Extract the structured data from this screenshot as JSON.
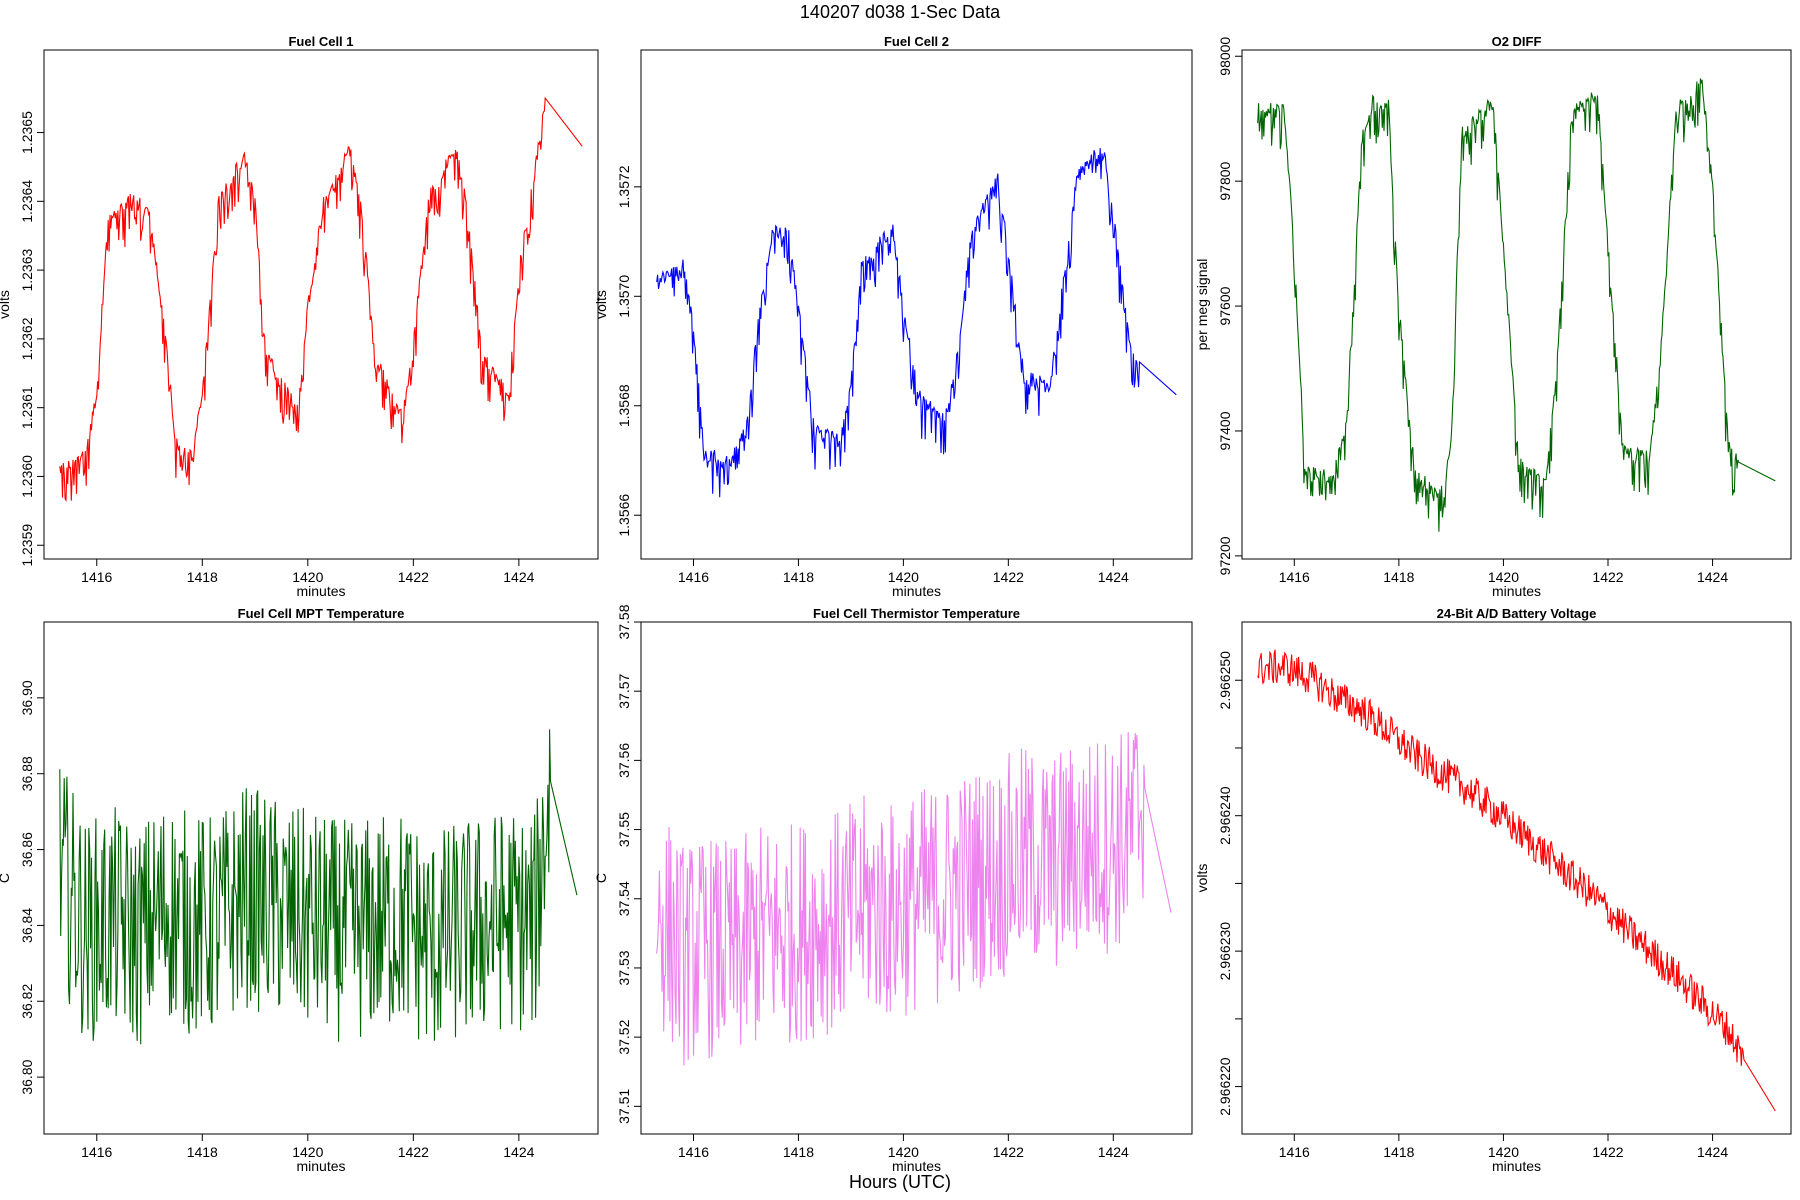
{
  "figure": {
    "title": "140207    d038    1-Sec Data",
    "xlabel": "Hours (UTC)"
  },
  "chart_data": [
    {
      "type": "line",
      "title": "Fuel Cell 1",
      "xlabel": "minutes",
      "ylabel": "volts",
      "color": "#ff0000",
      "xlim": [
        1415,
        1425.5
      ],
      "ylim": [
        1.23588,
        1.23662
      ],
      "xticks": [
        1416,
        1418,
        1420,
        1422,
        1424
      ],
      "yticks": [
        1.2359,
        1.236,
        1.2361,
        1.2362,
        1.2363,
        1.2364,
        1.2365
      ],
      "ytick_labels": [
        "1.2359",
        "1.2360",
        "1.2361",
        "1.2362",
        "1.2363",
        "1.2364",
        "1.2365"
      ],
      "x": [
        1415.3,
        1415.8,
        1416.0,
        1416.2,
        1416.7,
        1417.0,
        1417.3,
        1417.5,
        1417.8,
        1418.0,
        1418.3,
        1418.8,
        1419.0,
        1419.2,
        1419.8,
        1420.0,
        1420.3,
        1420.8,
        1421.0,
        1421.3,
        1421.8,
        1422.0,
        1422.3,
        1422.8,
        1423.0,
        1423.3,
        1423.8,
        1424.0,
        1424.3,
        1424.5,
        1425.2
      ],
      "y": [
        1.23601,
        1.23604,
        1.23612,
        1.23637,
        1.23641,
        1.23638,
        1.23621,
        1.23605,
        1.23603,
        1.23612,
        1.2364,
        1.23647,
        1.2364,
        1.23618,
        1.2361,
        1.23625,
        1.2364,
        1.23648,
        1.2364,
        1.23617,
        1.23609,
        1.2362,
        1.23641,
        1.23648,
        1.2364,
        1.23618,
        1.23612,
        1.2363,
        1.23645,
        1.23655,
        1.23648
      ]
    },
    {
      "type": "line",
      "title": "Fuel Cell 2",
      "xlabel": "minutes",
      "ylabel": "volts",
      "color": "#0000ff",
      "xlim": [
        1415,
        1425.5
      ],
      "ylim": [
        1.35652,
        1.35745
      ],
      "xticks": [
        1416,
        1418,
        1420,
        1422,
        1424
      ],
      "yticks": [
        1.3566,
        1.3568,
        1.357,
        1.3572
      ],
      "ytick_labels": [
        "1.3566",
        "1.3568",
        "1.3570",
        "1.3572"
      ],
      "x": [
        1415.3,
        1415.8,
        1416.0,
        1416.2,
        1416.7,
        1417.0,
        1417.3,
        1417.5,
        1417.8,
        1418.0,
        1418.3,
        1418.8,
        1419.0,
        1419.2,
        1419.8,
        1420.0,
        1420.3,
        1420.8,
        1421.0,
        1421.3,
        1421.8,
        1422.0,
        1422.3,
        1422.8,
        1423.0,
        1423.3,
        1423.8,
        1424.0,
        1424.3,
        1424.5,
        1425.2
      ],
      "y": [
        1.35703,
        1.35706,
        1.35695,
        1.35672,
        1.3567,
        1.35676,
        1.35701,
        1.35712,
        1.35713,
        1.35698,
        1.35676,
        1.35674,
        1.35684,
        1.35706,
        1.35713,
        1.35698,
        1.35682,
        1.35678,
        1.35688,
        1.35712,
        1.35722,
        1.35708,
        1.35686,
        1.35684,
        1.357,
        1.35722,
        1.35728,
        1.35715,
        1.35692,
        1.35688,
        1.35682
      ]
    },
    {
      "type": "line",
      "title": "O2 DIFF",
      "xlabel": "minutes",
      "ylabel": "per meg signal",
      "color": "#006400",
      "xlim": [
        1415,
        1425.5
      ],
      "ylim": [
        97195,
        98010
      ],
      "xticks": [
        1416,
        1418,
        1420,
        1422,
        1424
      ],
      "yticks": [
        97200,
        97400,
        97600,
        97800,
        98000
      ],
      "ytick_labels": [
        "97200",
        "97400",
        "97600",
        "97800",
        "98000"
      ],
      "x": [
        1415.3,
        1415.8,
        1416.0,
        1416.2,
        1416.7,
        1417.0,
        1417.3,
        1417.5,
        1417.8,
        1418.0,
        1418.3,
        1418.8,
        1419.0,
        1419.2,
        1419.8,
        1420.0,
        1420.3,
        1420.8,
        1421.0,
        1421.3,
        1421.8,
        1422.0,
        1422.3,
        1422.8,
        1423.0,
        1423.3,
        1423.8,
        1424.0,
        1424.3,
        1424.5,
        1425.2
      ],
      "y": [
        97920,
        97915,
        97700,
        97340,
        97330,
        97420,
        97880,
        97930,
        97925,
        97600,
        97340,
        97300,
        97380,
        97880,
        97930,
        97700,
        97350,
        97320,
        97480,
        97910,
        97945,
        97700,
        97370,
        97360,
        97520,
        97920,
        97960,
        97800,
        97380,
        97350,
        97320
      ]
    },
    {
      "type": "line",
      "title": "Fuel Cell MPT Temperature",
      "xlabel": "minutes",
      "ylabel": "C",
      "color": "#006400",
      "xlim": [
        1415,
        1425.5
      ],
      "ylim": [
        36.785,
        36.92
      ],
      "xticks": [
        1416,
        1418,
        1420,
        1422,
        1424
      ],
      "yticks": [
        36.8,
        36.82,
        36.84,
        36.86,
        36.88,
        36.9
      ],
      "ytick_labels": [
        "36.80",
        "36.82",
        "36.84",
        "36.86",
        "36.88",
        "36.90"
      ],
      "x": [
        1415.3,
        1415.8,
        1416.3,
        1416.8,
        1417.3,
        1417.8,
        1418.3,
        1418.8,
        1419.3,
        1419.8,
        1420.3,
        1420.8,
        1421.3,
        1421.8,
        1422.3,
        1422.8,
        1423.3,
        1423.8,
        1424.3,
        1424.6,
        1425.1
      ],
      "y": [
        36.855,
        36.838,
        36.842,
        36.837,
        36.845,
        36.84,
        36.84,
        36.848,
        36.845,
        36.842,
        36.84,
        36.838,
        36.84,
        36.842,
        36.835,
        36.838,
        36.84,
        36.842,
        36.84,
        36.878,
        36.848
      ]
    },
    {
      "type": "line",
      "title": "Fuel Cell Thermistor Temperature",
      "xlabel": "minutes",
      "ylabel": "C",
      "color": "#ee82ee",
      "xlim": [
        1415,
        1425.5
      ],
      "ylim": [
        37.506,
        37.58
      ],
      "xticks": [
        1416,
        1418,
        1420,
        1422,
        1424
      ],
      "yticks": [
        37.51,
        37.52,
        37.53,
        37.54,
        37.55,
        37.56,
        37.57,
        37.58
      ],
      "ytick_labels": [
        "37.51",
        "37.52",
        "37.53",
        "37.54",
        "37.55",
        "37.56",
        "37.57",
        "37.58"
      ],
      "x": [
        1415.3,
        1415.8,
        1416.3,
        1416.8,
        1417.3,
        1417.8,
        1418.3,
        1418.8,
        1419.3,
        1419.8,
        1420.3,
        1420.8,
        1421.3,
        1421.8,
        1422.3,
        1422.8,
        1423.3,
        1423.8,
        1424.3,
        1424.6,
        1425.1
      ],
      "y": [
        37.538,
        37.532,
        37.533,
        37.532,
        37.535,
        37.535,
        37.536,
        37.537,
        37.539,
        37.538,
        37.54,
        37.541,
        37.543,
        37.544,
        37.546,
        37.545,
        37.547,
        37.548,
        37.549,
        37.556,
        37.538
      ]
    },
    {
      "type": "line",
      "title": "24-Bit A/D Battery Voltage",
      "xlabel": "minutes",
      "ylabel": "volts",
      "color": "#ff0000",
      "xlim": [
        1415,
        1425.5
      ],
      "ylim": [
        2.9662165,
        2.9662543
      ],
      "xticks": [
        1416,
        1418,
        1420,
        1422,
        1424
      ],
      "yticks": [
        2.96622,
        2.966225,
        2.96623,
        2.966235,
        2.96624,
        2.966245,
        2.96625
      ],
      "ytick_labels": [
        "2.966220",
        "",
        "2.966230",
        "",
        "2.966240",
        "",
        "2.966250"
      ],
      "x": [
        1415.3,
        1415.8,
        1416.3,
        1416.8,
        1417.3,
        1417.8,
        1418.3,
        1418.8,
        1419.3,
        1419.8,
        1420.3,
        1420.8,
        1421.3,
        1421.8,
        1422.3,
        1422.8,
        1423.3,
        1423.8,
        1424.3,
        1424.6,
        1425.2
      ],
      "y": [
        2.9662508,
        2.966251,
        2.9662502,
        2.9662488,
        2.9662478,
        2.9662462,
        2.9662445,
        2.9662432,
        2.966242,
        2.9662405,
        2.9662388,
        2.9662372,
        2.9662355,
        2.9662338,
        2.9662318,
        2.96623,
        2.9662282,
        2.9662262,
        2.9662242,
        2.966222,
        2.9662182
      ]
    }
  ]
}
